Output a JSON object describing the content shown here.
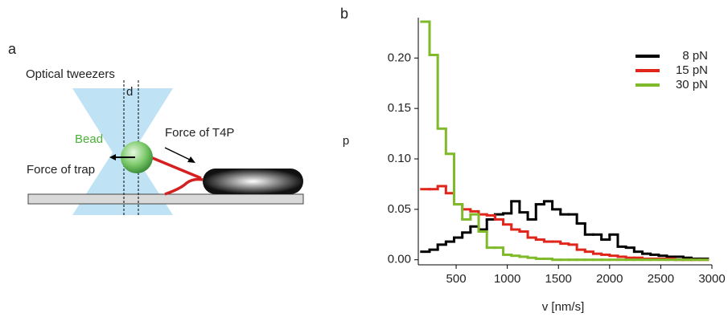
{
  "diagram": {
    "panel_label": "a",
    "tweezers_label": "Optical tweezers",
    "distance_label": "d",
    "bead_label": "Bead",
    "t4p_force_label": "Force of T4P",
    "trap_force_label": "Force of trap"
  },
  "chart_data": {
    "type": "histogram",
    "panel_label": "b",
    "xlabel": "v [nm/s]",
    "ylabel": "p",
    "bins": [
      160,
      240,
      320,
      400,
      480,
      560,
      640,
      720,
      800,
      880,
      960,
      1040,
      1120,
      1200,
      1280,
      1360,
      1440,
      1520,
      1600,
      1680,
      1760,
      1840,
      1920,
      2000,
      2080,
      2160,
      2240,
      2320,
      2400,
      2480,
      2560,
      2640,
      2720,
      2800,
      2880,
      2960
    ],
    "series": [
      {
        "name": "8 pN",
        "color": "#000000",
        "values": [
          0.008,
          0.01,
          0.015,
          0.018,
          0.022,
          0.027,
          0.033,
          0.03,
          0.04,
          0.045,
          0.046,
          0.058,
          0.047,
          0.04,
          0.055,
          0.058,
          0.05,
          0.045,
          0.045,
          0.036,
          0.025,
          0.025,
          0.02,
          0.025,
          0.013,
          0.012,
          0.008,
          0.006,
          0.005,
          0.004,
          0.003,
          0.003,
          0.002,
          0.001,
          0.001
        ]
      },
      {
        "name": "15 pN",
        "color": "#e0251b",
        "values": [
          0.07,
          0.07,
          0.073,
          0.066,
          0.055,
          0.05,
          0.048,
          0.045,
          0.044,
          0.04,
          0.035,
          0.03,
          0.028,
          0.022,
          0.02,
          0.018,
          0.018,
          0.016,
          0.015,
          0.01,
          0.008,
          0.006,
          0.005,
          0.004,
          0.003,
          0.002,
          0.002,
          0.001,
          0.001,
          0.001,
          0.001,
          0,
          0,
          0,
          0
        ]
      },
      {
        "name": "30 pN",
        "color": "#7fba2a",
        "values": [
          0.236,
          0.203,
          0.13,
          0.105,
          0.055,
          0.04,
          0.045,
          0.028,
          0.012,
          0.012,
          0.005,
          0.004,
          0.003,
          0.002,
          0.001,
          0.001,
          0,
          0,
          0,
          0,
          0,
          0,
          0,
          0,
          0,
          0,
          0,
          0,
          0,
          0,
          0,
          0,
          0,
          0,
          0
        ]
      }
    ],
    "xlim": [
      130,
      3000
    ],
    "ylim": [
      -0.005,
      0.24
    ],
    "xticks": [
      500,
      1000,
      1500,
      2000,
      2500,
      3000
    ],
    "yticks": [
      {
        "value": 0,
        "label": "0.00"
      },
      {
        "value": 0.05,
        "label": "0.05"
      },
      {
        "value": 0.1,
        "label": "0.10"
      },
      {
        "value": 0.15,
        "label": "0.15"
      },
      {
        "value": 0.2,
        "label": "0.20"
      }
    ],
    "legend": "upper right"
  }
}
